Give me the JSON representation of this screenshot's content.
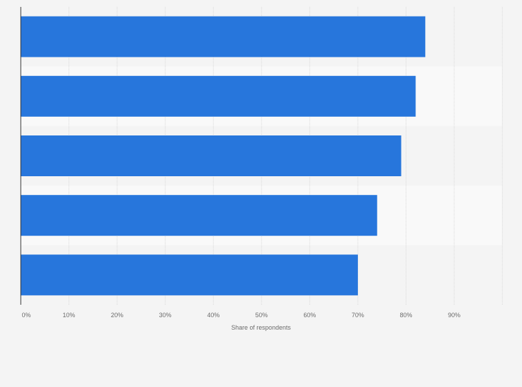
{
  "chart_data": {
    "type": "bar",
    "orientation": "horizontal",
    "categories": [
      "",
      "",
      "",
      "",
      ""
    ],
    "values": [
      84,
      82,
      79,
      74,
      70
    ],
    "xlabel": "Share of respondents",
    "ylabel": "",
    "xlim": [
      0,
      100
    ],
    "ticks": [
      0,
      10,
      20,
      30,
      40,
      50,
      60,
      70,
      80,
      90
    ],
    "tick_labels": [
      "0%",
      "10%",
      "20%",
      "30%",
      "40%",
      "50%",
      "60%",
      "70%",
      "80%",
      "90%"
    ],
    "grid": true,
    "colors": {
      "bar": "#2776dc",
      "background": "#f4f4f4",
      "band_alt": "#f9f9f9",
      "gridline": "#d9d9d9",
      "axis": "#333333"
    }
  }
}
